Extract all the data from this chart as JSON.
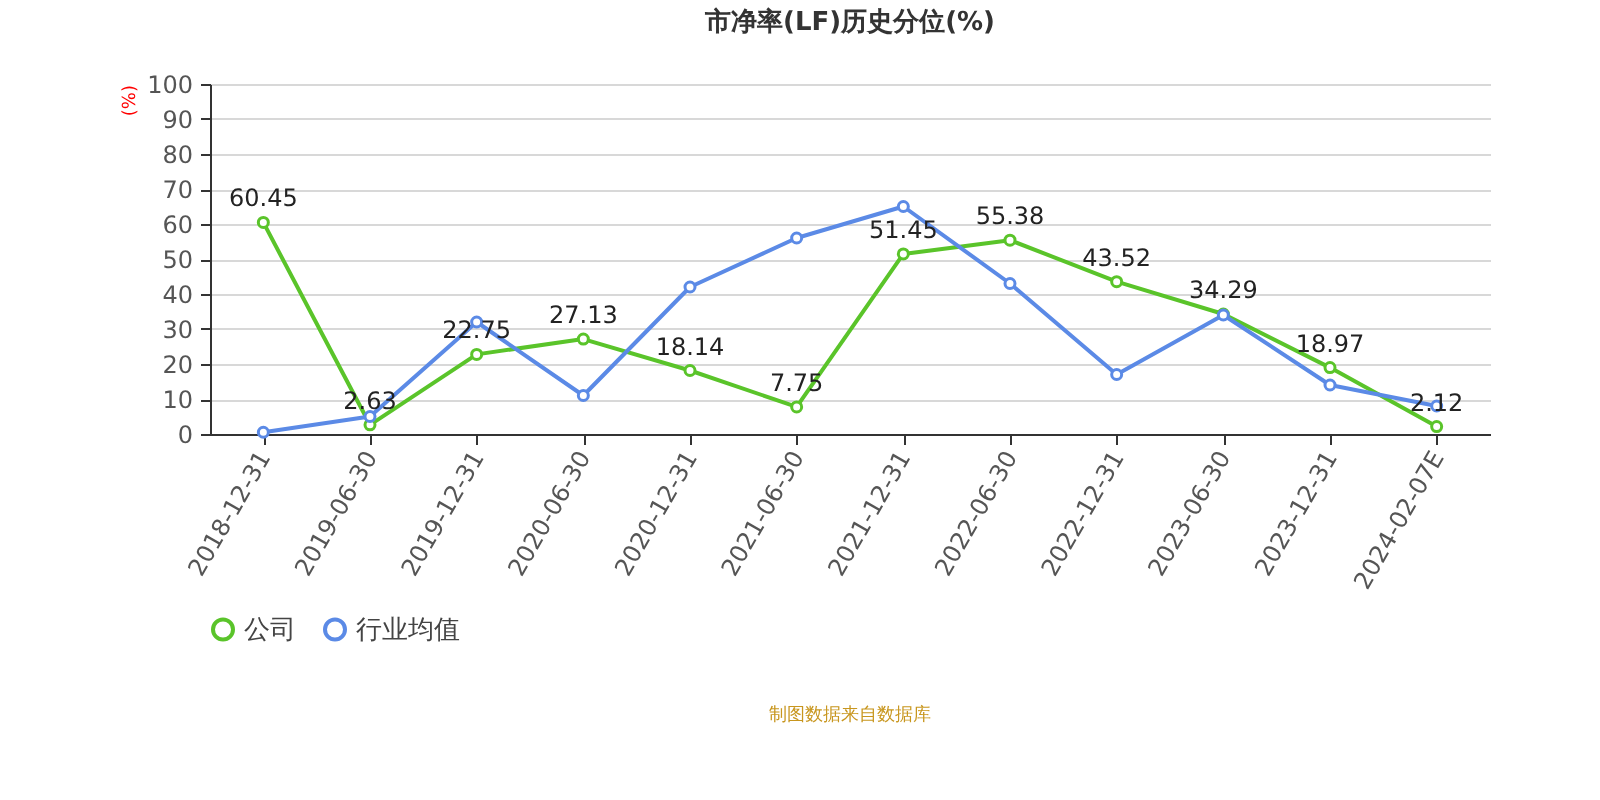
{
  "chart_data": {
    "type": "line",
    "title": "市净率(LF)历史分位(%)",
    "ylabel": "(%)",
    "categories": [
      "2018-12-31",
      "2019-06-30",
      "2019-12-31",
      "2020-06-30",
      "2020-12-31",
      "2021-06-30",
      "2021-12-31",
      "2022-06-30",
      "2022-12-31",
      "2023-06-30",
      "2023-12-31",
      "2024-02-07E"
    ],
    "series": [
      {
        "name": "公司",
        "color": "#5ac42a",
        "values": [
          60.45,
          2.63,
          22.75,
          27.13,
          18.14,
          7.75,
          51.45,
          55.38,
          43.52,
          34.29,
          18.97,
          2.12
        ],
        "value_labels": [
          "60.45",
          "2.63",
          "22.75",
          "27.13",
          "18.14",
          "7.75",
          "51.45",
          "55.38",
          "43.52",
          "34.29",
          "18.97",
          "2.12"
        ]
      },
      {
        "name": "行业均值",
        "color": "#5b8ae6",
        "values": [
          0.5,
          5,
          32,
          11,
          42,
          56,
          65,
          43,
          17,
          34,
          14,
          8
        ]
      }
    ],
    "ylim": [
      0,
      100
    ],
    "yticks": [
      0,
      10,
      20,
      30,
      40,
      50,
      60,
      70,
      80,
      90,
      100
    ],
    "grid": "y",
    "legend": "bottom",
    "marker": "circle",
    "line_style": "solid",
    "annotations": [
      "制图数据来自数据库"
    ]
  }
}
